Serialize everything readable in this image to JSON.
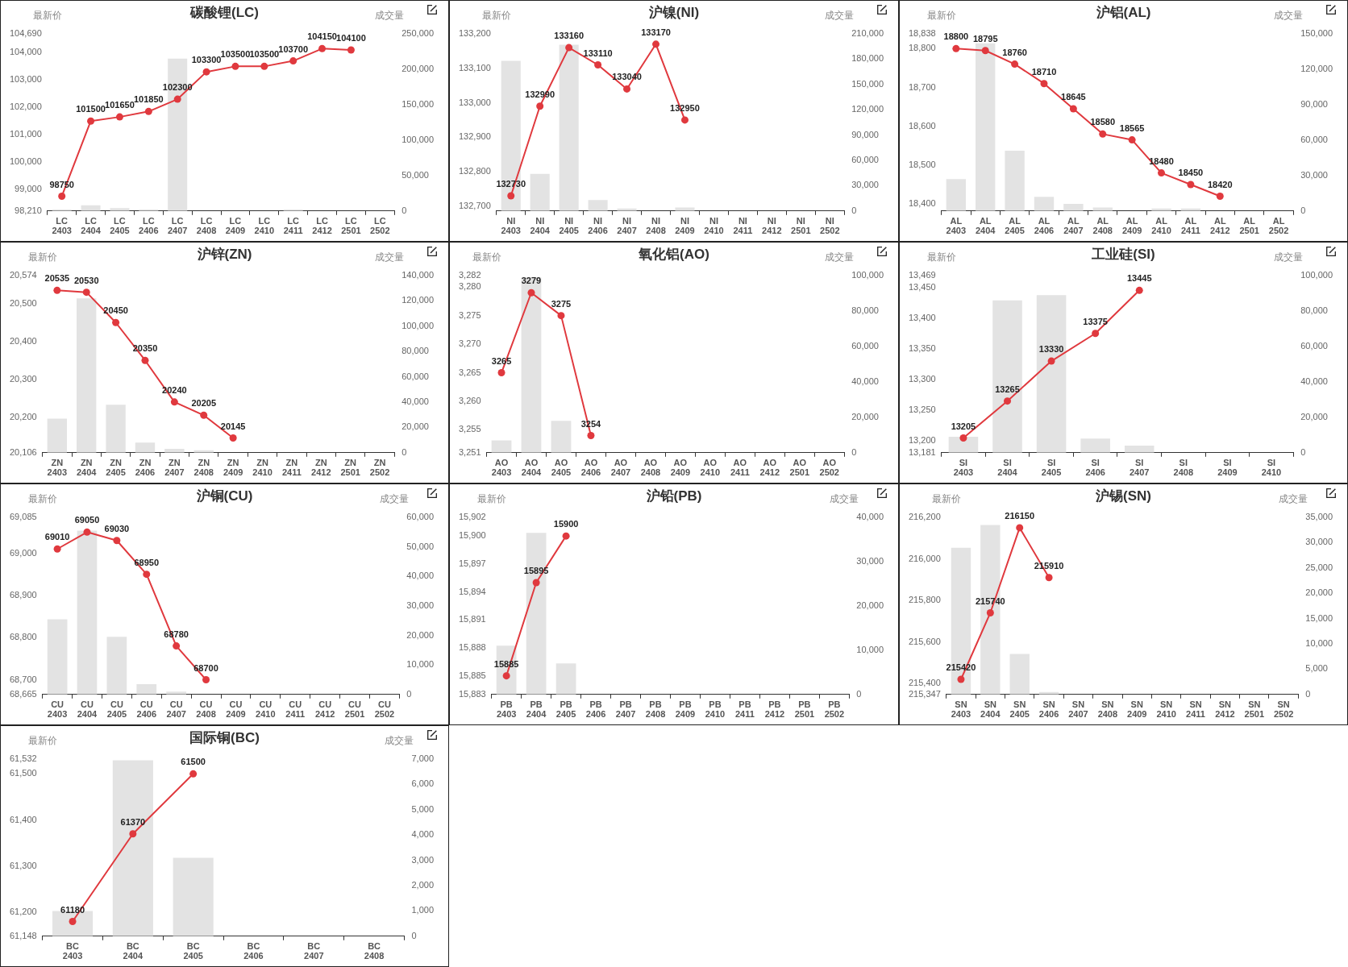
{
  "chart_data": [
    {
      "type": "bar",
      "title": "碳酸锂(LC)",
      "ylabel": "最新价",
      "y2label": "成交量",
      "marker": "circle",
      "categories": [
        "LC\n2403",
        "LC\n2404",
        "LC\n2405",
        "LC\n2406",
        "LC\n2407",
        "LC\n2408",
        "LC\n2409",
        "LC\n2410",
        "LC\n2411",
        "LC\n2412",
        "LC\n2501",
        "LC\n2502"
      ],
      "series": [
        {
          "axis": "y2",
          "color": "#e3e3e3",
          "values": [
            2000,
            8000,
            4000,
            2000,
            215000,
            null,
            null,
            null,
            2000,
            null,
            null,
            null
          ]
        },
        {
          "type": "line",
          "color": "#e0393e",
          "values": [
            98750,
            101500,
            101650,
            101850,
            102300,
            103300,
            103500,
            103500,
            103700,
            104150,
            104100,
            null
          ],
          "value_labels": [
            "98750",
            "101500",
            "101650",
            "101850",
            "102300",
            "103300",
            "103500",
            "103500",
            "103700",
            "104150",
            "104100",
            null
          ]
        }
      ],
      "ylim": [
        98210,
        104690
      ],
      "yticks": [
        {
          "value": 98210,
          "label": "98,210"
        },
        {
          "value": 99000,
          "label": "99,000"
        },
        {
          "value": 100000,
          "label": "100,000"
        },
        {
          "value": 101000,
          "label": "101,000"
        },
        {
          "value": 102000,
          "label": "102,000"
        },
        {
          "value": 103000,
          "label": "103,000"
        },
        {
          "value": 104000,
          "label": "104,000"
        },
        {
          "value": 104690,
          "label": "104,690"
        }
      ],
      "y2lim": [
        0,
        250000
      ],
      "y2ticks": [
        {
          "value": 0,
          "label": "0"
        },
        {
          "value": 50000,
          "label": "50,000"
        },
        {
          "value": 100000,
          "label": "100,000"
        },
        {
          "value": 150000,
          "label": "150,000"
        },
        {
          "value": 200000,
          "label": "200,000"
        },
        {
          "value": 250000,
          "label": "250,000"
        }
      ]
    },
    {
      "type": "bar",
      "title": "沪镍(NI)",
      "ylabel": "最新价",
      "y2label": "成交量",
      "marker": "circle",
      "categories": [
        "NI\n2403",
        "NI\n2404",
        "NI\n2405",
        "NI\n2406",
        "NI\n2407",
        "NI\n2408",
        "NI\n2409",
        "NI\n2410",
        "NI\n2411",
        "NI\n2412",
        "NI\n2501",
        "NI\n2502"
      ],
      "series": [
        {
          "axis": "y2",
          "color": "#e3e3e3",
          "values": [
            178000,
            44000,
            197000,
            13000,
            3000,
            null,
            4000,
            null,
            null,
            null,
            null,
            null
          ]
        },
        {
          "type": "line",
          "color": "#e0393e",
          "values": [
            132730,
            132990,
            133160,
            133110,
            133040,
            133170,
            132950,
            null,
            null,
            null,
            null,
            null
          ],
          "value_labels": [
            "132730",
            "132990",
            "133160",
            "133110",
            "133040",
            "133170",
            "132950",
            null,
            null,
            null,
            null,
            null
          ]
        }
      ],
      "ylim": [
        132686,
        133200
      ],
      "yticks": [
        {
          "value": 132700,
          "label": "132,700"
        },
        {
          "value": 132800,
          "label": "132,800"
        },
        {
          "value": 132900,
          "label": "132,900"
        },
        {
          "value": 133000,
          "label": "133,000"
        },
        {
          "value": 133100,
          "label": "133,100"
        },
        {
          "value": 133200,
          "label": "133,200"
        }
      ],
      "y2lim": [
        0,
        210000
      ],
      "y2ticks": [
        {
          "value": 0,
          "label": "0"
        },
        {
          "value": 30000,
          "label": "30,000"
        },
        {
          "value": 60000,
          "label": "60,000"
        },
        {
          "value": 90000,
          "label": "90,000"
        },
        {
          "value": 120000,
          "label": "120,000"
        },
        {
          "value": 150000,
          "label": "150,000"
        },
        {
          "value": 180000,
          "label": "180,000"
        },
        {
          "value": 210000,
          "label": "210,000"
        }
      ]
    },
    {
      "type": "bar",
      "title": "沪铝(AL)",
      "ylabel": "最新价",
      "y2label": "成交量",
      "marker": "circle",
      "categories": [
        "AL\n2403",
        "AL\n2404",
        "AL\n2405",
        "AL\n2406",
        "AL\n2407",
        "AL\n2408",
        "AL\n2409",
        "AL\n2410",
        "AL\n2411",
        "AL\n2412",
        "AL\n2501",
        "AL\n2502"
      ],
      "series": [
        {
          "axis": "y2",
          "color": "#e3e3e3",
          "values": [
            27000,
            142000,
            51000,
            12000,
            6000,
            3000,
            null,
            2000,
            2000,
            null,
            null,
            null
          ]
        },
        {
          "type": "line",
          "color": "#e0393e",
          "values": [
            18800,
            18795,
            18760,
            18710,
            18645,
            18580,
            18565,
            18480,
            18450,
            18420,
            null,
            null
          ],
          "value_labels": [
            "18800",
            "18795",
            "18760",
            "18710",
            "18645",
            "18580",
            "18565",
            "18480",
            "18450",
            "18420",
            null,
            null
          ]
        }
      ],
      "ylim": [
        18382,
        18838
      ],
      "yticks": [
        {
          "value": 18400,
          "label": "18,400"
        },
        {
          "value": 18500,
          "label": "18,500"
        },
        {
          "value": 18600,
          "label": "18,600"
        },
        {
          "value": 18700,
          "label": "18,700"
        },
        {
          "value": 18800,
          "label": "18,800"
        },
        {
          "value": 18838,
          "label": "18,838"
        }
      ],
      "y2lim": [
        0,
        150000
      ],
      "y2ticks": [
        {
          "value": 0,
          "label": "0"
        },
        {
          "value": 30000,
          "label": "30,000"
        },
        {
          "value": 60000,
          "label": "60,000"
        },
        {
          "value": 90000,
          "label": "90,000"
        },
        {
          "value": 120000,
          "label": "120,000"
        },
        {
          "value": 150000,
          "label": "150,000"
        }
      ]
    },
    {
      "type": "bar",
      "title": "沪锌(ZN)",
      "ylabel": "最新价",
      "y2label": "成交量",
      "marker": "circle",
      "categories": [
        "ZN\n2403",
        "ZN\n2404",
        "ZN\n2405",
        "ZN\n2406",
        "ZN\n2407",
        "ZN\n2408",
        "ZN\n2409",
        "ZN\n2410",
        "ZN\n2411",
        "ZN\n2412",
        "ZN\n2501",
        "ZN\n2502"
      ],
      "series": [
        {
          "axis": "y2",
          "color": "#e3e3e3",
          "values": [
            27000,
            122000,
            38000,
            8000,
            3000,
            2000,
            null,
            null,
            null,
            null,
            null,
            null
          ]
        },
        {
          "type": "line",
          "color": "#e0393e",
          "values": [
            20535,
            20530,
            20450,
            20350,
            20240,
            20205,
            20145,
            null,
            null,
            null,
            null,
            null
          ],
          "value_labels": [
            "20535",
            "20530",
            "20450",
            "20350",
            "20240",
            "20205",
            "20145",
            null,
            null,
            null,
            null,
            null
          ]
        }
      ],
      "ylim": [
        20106,
        20574
      ],
      "yticks": [
        {
          "value": 20106,
          "label": "20,106"
        },
        {
          "value": 20200,
          "label": "20,200"
        },
        {
          "value": 20300,
          "label": "20,300"
        },
        {
          "value": 20400,
          "label": "20,400"
        },
        {
          "value": 20500,
          "label": "20,500"
        },
        {
          "value": 20574,
          "label": "20,574"
        }
      ],
      "y2lim": [
        0,
        140000
      ],
      "y2ticks": [
        {
          "value": 0,
          "label": "0"
        },
        {
          "value": 20000,
          "label": "20,000"
        },
        {
          "value": 40000,
          "label": "40,000"
        },
        {
          "value": 60000,
          "label": "60,000"
        },
        {
          "value": 80000,
          "label": "80,000"
        },
        {
          "value": 100000,
          "label": "100,000"
        },
        {
          "value": 120000,
          "label": "120,000"
        },
        {
          "value": 140000,
          "label": "140,000"
        }
      ]
    },
    {
      "type": "bar",
      "title": "氧化铝(AO)",
      "ylabel": "最新价",
      "y2label": "成交量",
      "marker": "circle",
      "categories": [
        "AO\n2403",
        "AO\n2404",
        "AO\n2405",
        "AO\n2406",
        "AO\n2407",
        "AO\n2408",
        "AO\n2409",
        "AO\n2410",
        "AO\n2411",
        "AO\n2412",
        "AO\n2501",
        "AO\n2502"
      ],
      "series": [
        {
          "axis": "y2",
          "color": "#e3e3e3",
          "values": [
            7000,
            99000,
            18000,
            null,
            null,
            null,
            null,
            null,
            null,
            null,
            null,
            null
          ]
        },
        {
          "type": "line",
          "color": "#e0393e",
          "values": [
            3265,
            3279,
            3275,
            3254,
            null,
            null,
            null,
            null,
            null,
            null,
            null,
            null
          ],
          "value_labels": [
            "3265",
            "3279",
            "3275",
            "3254",
            null,
            null,
            null,
            null,
            null,
            null,
            null,
            null
          ]
        }
      ],
      "ylim": [
        3251,
        3282
      ],
      "yticks": [
        {
          "value": 3251,
          "label": "3,251"
        },
        {
          "value": 3255,
          "label": "3,255"
        },
        {
          "value": 3260,
          "label": "3,260"
        },
        {
          "value": 3265,
          "label": "3,265"
        },
        {
          "value": 3270,
          "label": "3,270"
        },
        {
          "value": 3275,
          "label": "3,275"
        },
        {
          "value": 3280,
          "label": "3,280"
        },
        {
          "value": 3282,
          "label": "3,282"
        }
      ],
      "y2lim": [
        0,
        100000
      ],
      "y2ticks": [
        {
          "value": 0,
          "label": "0"
        },
        {
          "value": 20000,
          "label": "20,000"
        },
        {
          "value": 40000,
          "label": "40,000"
        },
        {
          "value": 60000,
          "label": "60,000"
        },
        {
          "value": 80000,
          "label": "80,000"
        },
        {
          "value": 100000,
          "label": "100,000"
        }
      ]
    },
    {
      "type": "bar",
      "title": "工业硅(SI)",
      "ylabel": "最新价",
      "y2label": "成交量",
      "marker": "circle",
      "categories": [
        "SI\n2403",
        "SI\n2404",
        "SI\n2405",
        "SI\n2406",
        "SI\n2407",
        "SI\n2408",
        "SI\n2409",
        "SI\n2410"
      ],
      "series": [
        {
          "axis": "y2",
          "color": "#e3e3e3",
          "values": [
            9000,
            86000,
            89000,
            8000,
            4000,
            null,
            null,
            null
          ]
        },
        {
          "type": "line",
          "color": "#e0393e",
          "values": [
            13205,
            13265,
            13330,
            13375,
            13445,
            null,
            null,
            null
          ],
          "value_labels": [
            "13205",
            "13265",
            "13330",
            "13375",
            "13445",
            null,
            null,
            null
          ]
        }
      ],
      "ylim": [
        13181,
        13469
      ],
      "yticks": [
        {
          "value": 13181,
          "label": "13,181"
        },
        {
          "value": 13200,
          "label": "13,200"
        },
        {
          "value": 13250,
          "label": "13,250"
        },
        {
          "value": 13300,
          "label": "13,300"
        },
        {
          "value": 13350,
          "label": "13,350"
        },
        {
          "value": 13400,
          "label": "13,400"
        },
        {
          "value": 13450,
          "label": "13,450"
        },
        {
          "value": 13469,
          "label": "13,469"
        }
      ],
      "y2lim": [
        0,
        100000
      ],
      "y2ticks": [
        {
          "value": 0,
          "label": "0"
        },
        {
          "value": 20000,
          "label": "20,000"
        },
        {
          "value": 40000,
          "label": "40,000"
        },
        {
          "value": 60000,
          "label": "60,000"
        },
        {
          "value": 80000,
          "label": "80,000"
        },
        {
          "value": 100000,
          "label": "100,000"
        }
      ]
    },
    {
      "type": "bar",
      "title": "沪铜(CU)",
      "ylabel": "最新价",
      "y2label": "成交量",
      "marker": "circle",
      "categories": [
        "CU\n2403",
        "CU\n2404",
        "CU\n2405",
        "CU\n2406",
        "CU\n2407",
        "CU\n2408",
        "CU\n2409",
        "CU\n2410",
        "CU\n2411",
        "CU\n2412",
        "CU\n2501",
        "CU\n2502"
      ],
      "series": [
        {
          "axis": "y2",
          "color": "#e3e3e3",
          "values": [
            25500,
            55500,
            19500,
            3500,
            1000,
            null,
            null,
            null,
            null,
            null,
            null,
            null
          ]
        },
        {
          "type": "line",
          "color": "#e0393e",
          "values": [
            69010,
            69050,
            69030,
            68950,
            68780,
            68700,
            null,
            null,
            null,
            null,
            null,
            null
          ],
          "value_labels": [
            "69010",
            "69050",
            "69030",
            "68950",
            "68780",
            "68700",
            null,
            null,
            null,
            null,
            null,
            null
          ]
        }
      ],
      "ylim": [
        68665,
        69085
      ],
      "yticks": [
        {
          "value": 68665,
          "label": "68,665"
        },
        {
          "value": 68700,
          "label": "68,700"
        },
        {
          "value": 68800,
          "label": "68,800"
        },
        {
          "value": 68900,
          "label": "68,900"
        },
        {
          "value": 69000,
          "label": "69,000"
        },
        {
          "value": 69085,
          "label": "69,085"
        }
      ],
      "y2lim": [
        0,
        60000
      ],
      "y2ticks": [
        {
          "value": 0,
          "label": "0"
        },
        {
          "value": 10000,
          "label": "10,000"
        },
        {
          "value": 20000,
          "label": "20,000"
        },
        {
          "value": 30000,
          "label": "30,000"
        },
        {
          "value": 40000,
          "label": "40,000"
        },
        {
          "value": 50000,
          "label": "50,000"
        },
        {
          "value": 60000,
          "label": "60,000"
        }
      ]
    },
    {
      "type": "bar",
      "title": "沪铅(PB)",
      "ylabel": "最新价",
      "y2label": "成交量",
      "marker": "circle",
      "categories": [
        "PB\n2403",
        "PB\n2404",
        "PB\n2405",
        "PB\n2406",
        "PB\n2407",
        "PB\n2408",
        "PB\n2409",
        "PB\n2410",
        "PB\n2411",
        "PB\n2412",
        "PB\n2501",
        "PB\n2502"
      ],
      "series": [
        {
          "axis": "y2",
          "color": "#e3e3e3",
          "values": [
            11000,
            36500,
            7000,
            null,
            null,
            null,
            null,
            null,
            null,
            null,
            null,
            null
          ]
        },
        {
          "type": "line",
          "color": "#e0393e",
          "values": [
            15885,
            15895,
            15900,
            null,
            null,
            null,
            null,
            null,
            null,
            null,
            null,
            null
          ],
          "value_labels": [
            "15885",
            "15895",
            "15900",
            null,
            null,
            null,
            null,
            null,
            null,
            null,
            null,
            null
          ]
        }
      ],
      "ylim": [
        15883,
        15902
      ],
      "yticks": [
        {
          "value": 15883,
          "label": "15,883"
        },
        {
          "value": 15885,
          "label": "15,885"
        },
        {
          "value": 15888,
          "label": "15,888"
        },
        {
          "value": 15891,
          "label": "15,891"
        },
        {
          "value": 15894,
          "label": "15,894"
        },
        {
          "value": 15897,
          "label": "15,897"
        },
        {
          "value": 15900,
          "label": "15,900"
        },
        {
          "value": 15902,
          "label": "15,902"
        }
      ],
      "y2lim": [
        0,
        40000
      ],
      "y2ticks": [
        {
          "value": 0,
          "label": "0"
        },
        {
          "value": 10000,
          "label": "10,000"
        },
        {
          "value": 20000,
          "label": "20,000"
        },
        {
          "value": 30000,
          "label": "30,000"
        },
        {
          "value": 40000,
          "label": "40,000"
        }
      ]
    },
    {
      "type": "bar",
      "title": "沪锡(SN)",
      "ylabel": "最新价",
      "y2label": "成交量",
      "marker": "circle",
      "categories": [
        "SN\n2403",
        "SN\n2404",
        "SN\n2405",
        "SN\n2406",
        "SN\n2407",
        "SN\n2408",
        "SN\n2409",
        "SN\n2410",
        "SN\n2411",
        "SN\n2412",
        "SN\n2501",
        "SN\n2502"
      ],
      "series": [
        {
          "axis": "y2",
          "color": "#e3e3e3",
          "values": [
            29000,
            33500,
            8000,
            500,
            null,
            null,
            null,
            null,
            null,
            null,
            null,
            null
          ]
        },
        {
          "type": "line",
          "color": "#e0393e",
          "values": [
            215420,
            215740,
            216150,
            215910,
            null,
            null,
            null,
            null,
            null,
            null,
            null,
            null
          ],
          "value_labels": [
            "215420",
            "215740",
            "216150",
            "215910",
            null,
            null,
            null,
            null,
            null,
            null,
            null,
            null
          ]
        }
      ],
      "ylim": [
        215347,
        216200
      ],
      "yticks": [
        {
          "value": 215347,
          "label": "215,347"
        },
        {
          "value": 215400,
          "label": "215,400"
        },
        {
          "value": 215600,
          "label": "215,600"
        },
        {
          "value": 215800,
          "label": "215,800"
        },
        {
          "value": 216000,
          "label": "216,000"
        },
        {
          "value": 216200,
          "label": "216,200"
        }
      ],
      "y2lim": [
        0,
        35000
      ],
      "y2ticks": [
        {
          "value": 0,
          "label": "0"
        },
        {
          "value": 5000,
          "label": "5,000"
        },
        {
          "value": 10000,
          "label": "10,000"
        },
        {
          "value": 15000,
          "label": "15,000"
        },
        {
          "value": 20000,
          "label": "20,000"
        },
        {
          "value": 25000,
          "label": "25,000"
        },
        {
          "value": 30000,
          "label": "30,000"
        },
        {
          "value": 35000,
          "label": "35,000"
        }
      ]
    },
    {
      "type": "bar",
      "title": "国际铜(BC)",
      "ylabel": "最新价",
      "y2label": "成交量",
      "marker": "circle",
      "categories": [
        "BC\n2403",
        "BC\n2404",
        "BC\n2405",
        "BC\n2406",
        "BC\n2407",
        "BC\n2408"
      ],
      "series": [
        {
          "axis": "y2",
          "color": "#e3e3e3",
          "values": [
            1000,
            6950,
            3100,
            null,
            null,
            null
          ]
        },
        {
          "type": "line",
          "color": "#e0393e",
          "values": [
            61180,
            61370,
            61500,
            null,
            null,
            null
          ],
          "value_labels": [
            "61180",
            "61370",
            "61500",
            null,
            null,
            null
          ]
        }
      ],
      "ylim": [
        61148,
        61532
      ],
      "yticks": [
        {
          "value": 61148,
          "label": "61,148"
        },
        {
          "value": 61200,
          "label": "61,200"
        },
        {
          "value": 61300,
          "label": "61,300"
        },
        {
          "value": 61400,
          "label": "61,400"
        },
        {
          "value": 61500,
          "label": "61,500"
        },
        {
          "value": 61532,
          "label": "61,532"
        }
      ],
      "y2lim": [
        0,
        7000
      ],
      "y2ticks": [
        {
          "value": 0,
          "label": "0"
        },
        {
          "value": 1000,
          "label": "1,000"
        },
        {
          "value": 2000,
          "label": "2,000"
        },
        {
          "value": 3000,
          "label": "3,000"
        },
        {
          "value": 4000,
          "label": "4,000"
        },
        {
          "value": 5000,
          "label": "5,000"
        },
        {
          "value": 6000,
          "label": "6,000"
        },
        {
          "value": 7000,
          "label": "7,000"
        }
      ]
    }
  ]
}
